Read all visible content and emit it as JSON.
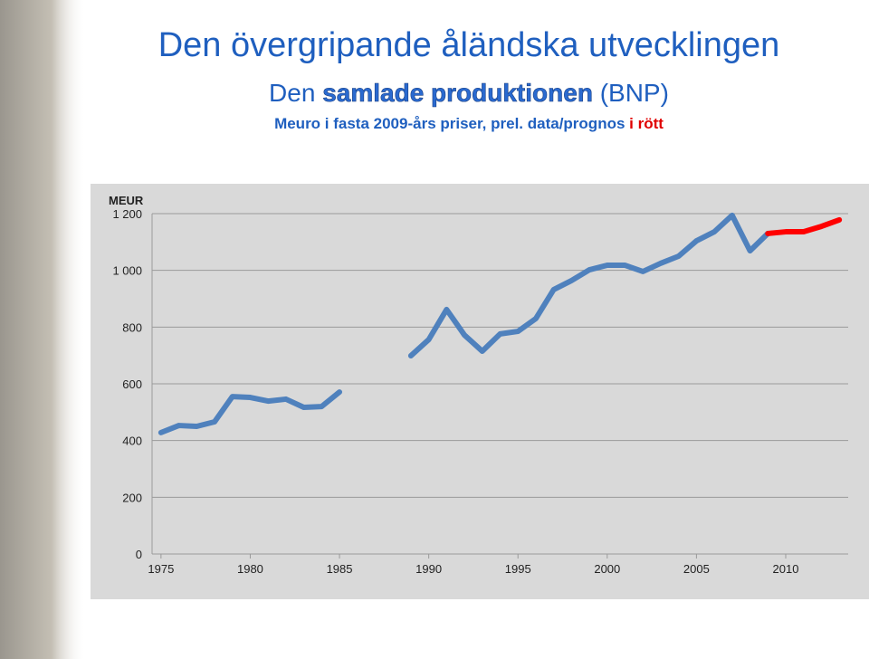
{
  "chart_data": {
    "type": "line",
    "title": "Den övergripande åländska utvecklingen",
    "subtitle": [
      "Den",
      "samlade produktionen",
      "(BNP)"
    ],
    "note": [
      "Meuro i fasta 2009-års priser, prel. data/prognos",
      "i rött"
    ],
    "ylabel": "MEUR",
    "x": [
      1975,
      1976,
      1977,
      1978,
      1979,
      1980,
      1981,
      1982,
      1983,
      1984,
      1985,
      1986,
      1987,
      1988,
      1989,
      1990,
      1991,
      1992,
      1993,
      1994,
      1995,
      1996,
      1997,
      1998,
      1999,
      2000,
      2001,
      2002,
      2003,
      2004,
      2005,
      2006,
      2007,
      2008,
      2009,
      2010,
      2011,
      2012,
      2013
    ],
    "xlim": [
      1974.5,
      2013.5
    ],
    "xticks": [
      1975,
      1980,
      1985,
      1990,
      1995,
      2000,
      2005,
      2010
    ],
    "ylim": [
      0,
      1200
    ],
    "yticks": [
      0,
      200,
      400,
      600,
      800,
      {
        "value": 1000,
        "label": "1 000"
      },
      {
        "value": 1200,
        "label": "1 200"
      }
    ],
    "grid": true,
    "series": [
      {
        "color": "#4f81bd",
        "values": [
          428,
          453,
          450,
          466,
          555,
          552,
          539,
          546,
          517,
          520,
          571,
          null,
          null,
          null,
          699,
          756,
          862,
          772,
          715,
          776,
          785,
          830,
          932,
          964,
          1002,
          1018,
          1018,
          996,
          1025,
          1050,
          1104,
          1136,
          1194,
          1069,
          1130,
          null,
          null,
          null,
          null
        ]
      },
      {
        "color": "#ff0000",
        "values": [
          null,
          null,
          null,
          null,
          null,
          null,
          null,
          null,
          null,
          null,
          null,
          null,
          null,
          null,
          null,
          null,
          null,
          null,
          null,
          null,
          null,
          null,
          null,
          null,
          null,
          null,
          null,
          null,
          null,
          null,
          null,
          null,
          null,
          null,
          1130,
          1136,
          1136,
          1155,
          1178
        ]
      }
    ]
  }
}
